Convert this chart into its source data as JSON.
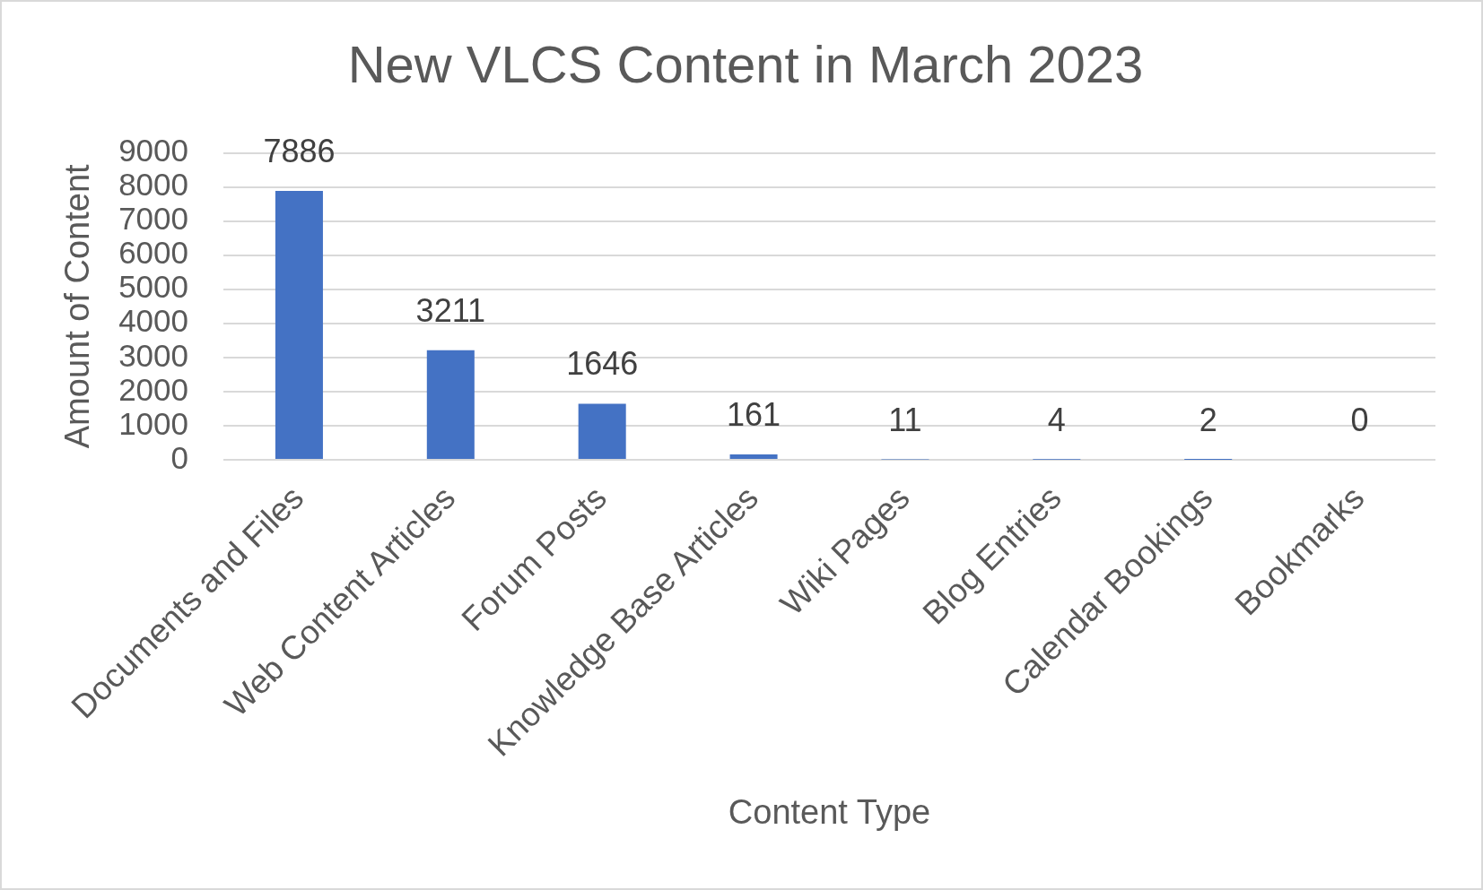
{
  "chart_data": {
    "type": "bar",
    "title": "New VLCS Content in March 2023",
    "xlabel": "Content Type",
    "ylabel": "Amount of Content",
    "categories": [
      "Documents and Files",
      "Web Content Articles",
      "Forum Posts",
      "Knowledge Base Articles",
      "Wiki Pages",
      "Blog Entries",
      "Calendar Bookings",
      "Bookmarks"
    ],
    "values": [
      7886,
      3211,
      1646,
      161,
      11,
      4,
      2,
      0
    ],
    "color": "#4472c4",
    "ylim": [
      0,
      9000
    ],
    "yticks": [
      0,
      1000,
      2000,
      3000,
      4000,
      5000,
      6000,
      7000,
      8000,
      9000
    ],
    "grid": "y",
    "data_labels": true
  }
}
